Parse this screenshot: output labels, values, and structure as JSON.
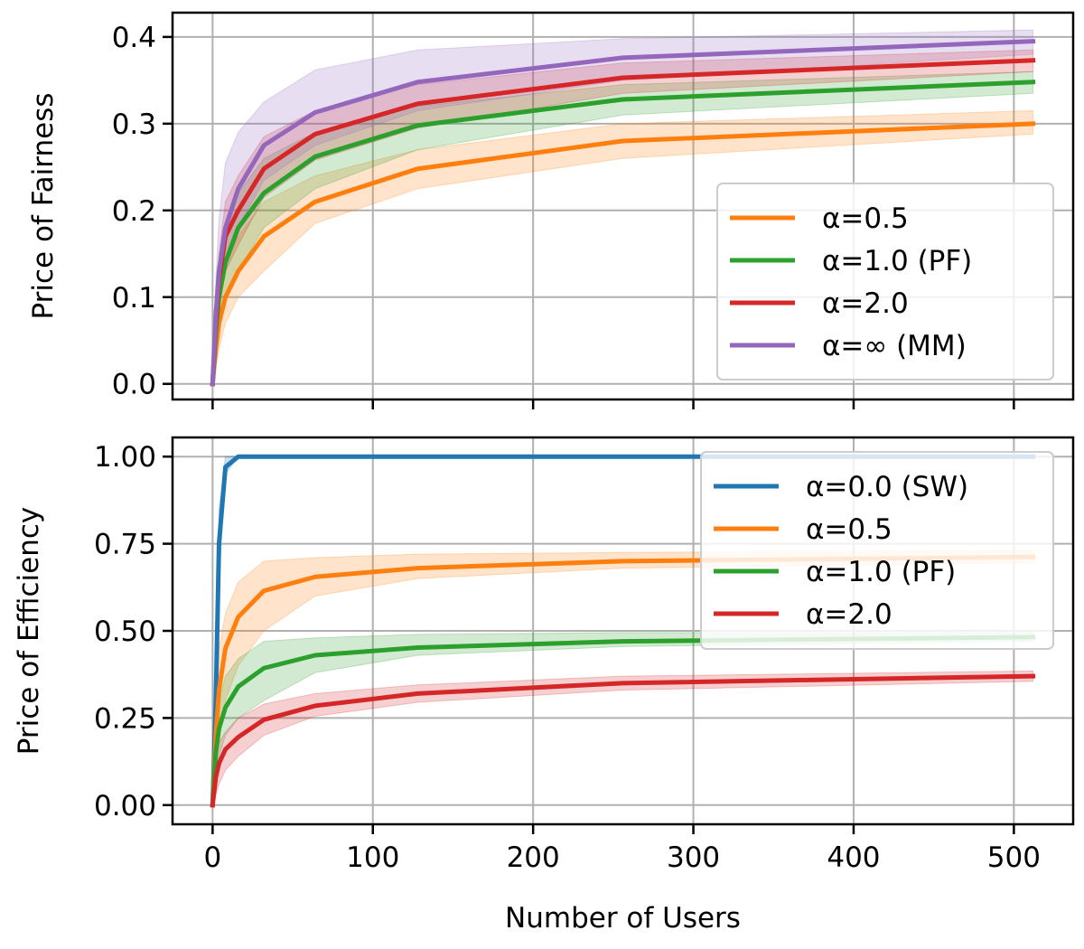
{
  "chart_data": [
    {
      "type": "line",
      "ylabel": "Price of Fairness",
      "xlabel": "",
      "xlim": [
        -25,
        537
      ],
      "ylim": [
        -0.018,
        0.428
      ],
      "xticks": [
        0,
        100,
        200,
        300,
        400,
        500
      ],
      "xtick_labels": [
        "",
        "",
        "",
        "",
        "",
        ""
      ],
      "yticks": [
        0.0,
        0.1,
        0.2,
        0.3,
        0.4
      ],
      "ytick_labels": [
        "0.0",
        "0.1",
        "0.2",
        "0.3",
        "0.4"
      ],
      "grid": true,
      "legend_position": "right",
      "x": [
        0,
        2,
        4,
        8,
        16,
        32,
        64,
        128,
        256,
        512
      ],
      "series": [
        {
          "name": "α=0.5",
          "color": "#ff7f0e",
          "values": [
            0,
            0.04,
            0.07,
            0.1,
            0.13,
            0.17,
            0.21,
            0.248,
            0.28,
            0.3
          ],
          "lower": [
            0,
            0.02,
            0.04,
            0.07,
            0.1,
            0.13,
            0.185,
            0.225,
            0.26,
            0.288
          ],
          "upper": [
            0,
            0.06,
            0.1,
            0.14,
            0.17,
            0.21,
            0.24,
            0.27,
            0.3,
            0.315
          ]
        },
        {
          "name": "α=1.0 (PF)",
          "color": "#2ca02c",
          "values": [
            0,
            0.06,
            0.1,
            0.14,
            0.18,
            0.22,
            0.262,
            0.298,
            0.328,
            0.348
          ],
          "lower": [
            0,
            0.04,
            0.07,
            0.1,
            0.13,
            0.18,
            0.225,
            0.27,
            0.31,
            0.335
          ],
          "upper": [
            0,
            0.08,
            0.13,
            0.18,
            0.22,
            0.26,
            0.29,
            0.32,
            0.345,
            0.36
          ]
        },
        {
          "name": "α=2.0",
          "color": "#d62728",
          "values": [
            0,
            0.07,
            0.12,
            0.17,
            0.2,
            0.248,
            0.288,
            0.323,
            0.353,
            0.373
          ],
          "lower": [
            0,
            0.05,
            0.09,
            0.13,
            0.16,
            0.215,
            0.258,
            0.295,
            0.335,
            0.36
          ],
          "upper": [
            0,
            0.09,
            0.15,
            0.21,
            0.24,
            0.285,
            0.315,
            0.345,
            0.37,
            0.385
          ]
        },
        {
          "name": "α=∞ (MM)",
          "color": "#9467bd",
          "values": [
            0,
            0.08,
            0.13,
            0.18,
            0.225,
            0.275,
            0.313,
            0.348,
            0.376,
            0.395
          ],
          "lower": [
            0,
            0.05,
            0.09,
            0.14,
            0.18,
            0.235,
            0.275,
            0.315,
            0.35,
            0.38
          ],
          "upper": [
            0,
            0.12,
            0.19,
            0.255,
            0.29,
            0.325,
            0.362,
            0.385,
            0.398,
            0.408
          ]
        }
      ]
    },
    {
      "type": "line",
      "ylabel": "Price of Efficiency",
      "xlabel": "Number of Users",
      "xlim": [
        -25,
        537
      ],
      "ylim": [
        -0.055,
        1.055
      ],
      "xticks": [
        0,
        100,
        200,
        300,
        400,
        500
      ],
      "xtick_labels": [
        "0",
        "100",
        "200",
        "300",
        "400",
        "500"
      ],
      "yticks": [
        0.0,
        0.25,
        0.5,
        0.75,
        1.0
      ],
      "ytick_labels": [
        "0.00",
        "0.25",
        "0.50",
        "0.75",
        "1.00"
      ],
      "grid": true,
      "legend_position": "top-right",
      "x": [
        0,
        2,
        4,
        8,
        16,
        32,
        64,
        128,
        256,
        512
      ],
      "series": [
        {
          "name": "α=0.0 (SW)",
          "color": "#1f77b4",
          "values": [
            0,
            0.3,
            0.75,
            0.97,
            1.0,
            1.0,
            1.0,
            1.0,
            1.0,
            1.0
          ],
          "lower": [
            0,
            0.2,
            0.65,
            0.95,
            1.0,
            1.0,
            1.0,
            1.0,
            1.0,
            1.0
          ],
          "upper": [
            0,
            0.45,
            0.85,
            1.0,
            1.0,
            1.0,
            1.0,
            1.0,
            1.0,
            1.0
          ]
        },
        {
          "name": "α=0.5",
          "color": "#ff7f0e",
          "values": [
            0,
            0.2,
            0.33,
            0.45,
            0.54,
            0.615,
            0.655,
            0.68,
            0.7,
            0.712
          ],
          "lower": [
            0,
            0.1,
            0.2,
            0.3,
            0.4,
            0.5,
            0.6,
            0.65,
            0.68,
            0.695
          ],
          "upper": [
            0,
            0.3,
            0.45,
            0.55,
            0.64,
            0.7,
            0.71,
            0.72,
            0.725,
            0.73
          ]
        },
        {
          "name": "α=1.0 (PF)",
          "color": "#2ca02c",
          "values": [
            0,
            0.15,
            0.22,
            0.28,
            0.34,
            0.393,
            0.43,
            0.452,
            0.47,
            0.482
          ],
          "lower": [
            0,
            0.08,
            0.14,
            0.2,
            0.25,
            0.3,
            0.38,
            0.43,
            0.455,
            0.47
          ],
          "upper": [
            0,
            0.22,
            0.3,
            0.37,
            0.42,
            0.47,
            0.48,
            0.49,
            0.495,
            0.495
          ]
        },
        {
          "name": "α=2.0",
          "color": "#d62728",
          "values": [
            0,
            0.08,
            0.12,
            0.16,
            0.195,
            0.245,
            0.285,
            0.32,
            0.35,
            0.37
          ],
          "lower": [
            0,
            0.03,
            0.06,
            0.1,
            0.14,
            0.2,
            0.255,
            0.295,
            0.33,
            0.355
          ],
          "upper": [
            0,
            0.13,
            0.18,
            0.21,
            0.25,
            0.29,
            0.32,
            0.345,
            0.37,
            0.385
          ]
        }
      ]
    }
  ]
}
